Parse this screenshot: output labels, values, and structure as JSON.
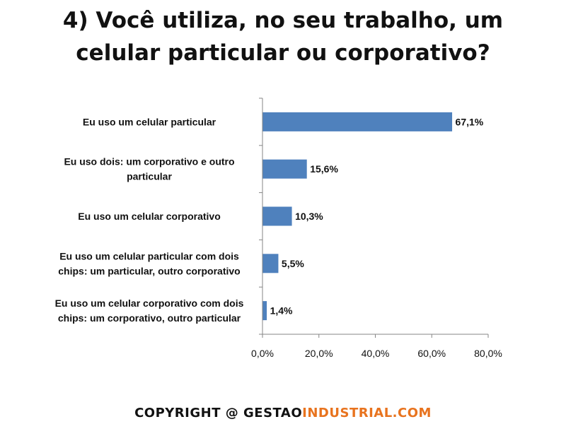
{
  "title": {
    "line1": "4) Você utiliza, no seu trabalho, um",
    "line2": "celular particular ou corporativo?"
  },
  "footer": {
    "copyright": "COPYRIGHT @ GESTAO",
    "brand": "INDUSTRIAL.COM"
  },
  "colors": {
    "bar": "#4f81bd",
    "axis": "#868686"
  },
  "chart_data": {
    "type": "bar",
    "orientation": "horizontal",
    "categories": [
      [
        "Eu uso um celular particular"
      ],
      [
        "Eu uso dois: um corporativo e outro",
        "particular"
      ],
      [
        "Eu uso um celular corporativo"
      ],
      [
        "Eu uso um celular particular com dois",
        "chips: um particular, outro corporativo"
      ],
      [
        "Eu uso um celular corporativo com dois",
        "chips: um corporativo, outro particular"
      ]
    ],
    "values": [
      67.1,
      15.6,
      10.3,
      5.5,
      1.4
    ],
    "data_labels": [
      "67,1%",
      "15,6%",
      "10,3%",
      "5,5%",
      "1,4%"
    ],
    "xlim": [
      0,
      80
    ],
    "xticks": [
      0,
      20,
      40,
      60,
      80
    ],
    "xtick_labels": [
      "0,0%",
      "20,0%",
      "40,0%",
      "60,0%",
      "80,0%"
    ],
    "grid": false,
    "legend": "none"
  }
}
